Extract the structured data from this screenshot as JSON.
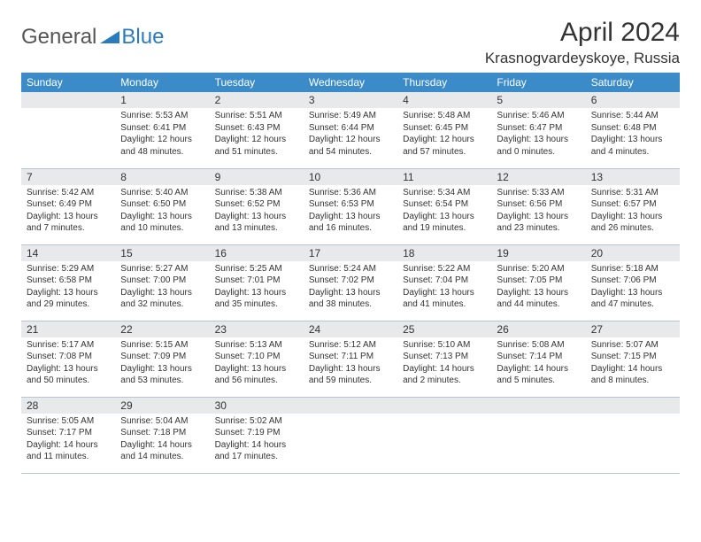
{
  "logo": {
    "general": "General",
    "blue": "Blue"
  },
  "title": "April 2024",
  "location": "Krasnogvardeyskoye, Russia",
  "colors": {
    "header_bg": "#3b8bc9",
    "daynum_bg": "#e7e9eb",
    "border": "#b8c5d0",
    "logo_blue": "#2b7bbf"
  },
  "weekdays": [
    "Sunday",
    "Monday",
    "Tuesday",
    "Wednesday",
    "Thursday",
    "Friday",
    "Saturday"
  ],
  "weeks": [
    [
      null,
      {
        "n": "1",
        "sr": "Sunrise: 5:53 AM",
        "ss": "Sunset: 6:41 PM",
        "d1": "Daylight: 12 hours",
        "d2": "and 48 minutes."
      },
      {
        "n": "2",
        "sr": "Sunrise: 5:51 AM",
        "ss": "Sunset: 6:43 PM",
        "d1": "Daylight: 12 hours",
        "d2": "and 51 minutes."
      },
      {
        "n": "3",
        "sr": "Sunrise: 5:49 AM",
        "ss": "Sunset: 6:44 PM",
        "d1": "Daylight: 12 hours",
        "d2": "and 54 minutes."
      },
      {
        "n": "4",
        "sr": "Sunrise: 5:48 AM",
        "ss": "Sunset: 6:45 PM",
        "d1": "Daylight: 12 hours",
        "d2": "and 57 minutes."
      },
      {
        "n": "5",
        "sr": "Sunrise: 5:46 AM",
        "ss": "Sunset: 6:47 PM",
        "d1": "Daylight: 13 hours",
        "d2": "and 0 minutes."
      },
      {
        "n": "6",
        "sr": "Sunrise: 5:44 AM",
        "ss": "Sunset: 6:48 PM",
        "d1": "Daylight: 13 hours",
        "d2": "and 4 minutes."
      }
    ],
    [
      {
        "n": "7",
        "sr": "Sunrise: 5:42 AM",
        "ss": "Sunset: 6:49 PM",
        "d1": "Daylight: 13 hours",
        "d2": "and 7 minutes."
      },
      {
        "n": "8",
        "sr": "Sunrise: 5:40 AM",
        "ss": "Sunset: 6:50 PM",
        "d1": "Daylight: 13 hours",
        "d2": "and 10 minutes."
      },
      {
        "n": "9",
        "sr": "Sunrise: 5:38 AM",
        "ss": "Sunset: 6:52 PM",
        "d1": "Daylight: 13 hours",
        "d2": "and 13 minutes."
      },
      {
        "n": "10",
        "sr": "Sunrise: 5:36 AM",
        "ss": "Sunset: 6:53 PM",
        "d1": "Daylight: 13 hours",
        "d2": "and 16 minutes."
      },
      {
        "n": "11",
        "sr": "Sunrise: 5:34 AM",
        "ss": "Sunset: 6:54 PM",
        "d1": "Daylight: 13 hours",
        "d2": "and 19 minutes."
      },
      {
        "n": "12",
        "sr": "Sunrise: 5:33 AM",
        "ss": "Sunset: 6:56 PM",
        "d1": "Daylight: 13 hours",
        "d2": "and 23 minutes."
      },
      {
        "n": "13",
        "sr": "Sunrise: 5:31 AM",
        "ss": "Sunset: 6:57 PM",
        "d1": "Daylight: 13 hours",
        "d2": "and 26 minutes."
      }
    ],
    [
      {
        "n": "14",
        "sr": "Sunrise: 5:29 AM",
        "ss": "Sunset: 6:58 PM",
        "d1": "Daylight: 13 hours",
        "d2": "and 29 minutes."
      },
      {
        "n": "15",
        "sr": "Sunrise: 5:27 AM",
        "ss": "Sunset: 7:00 PM",
        "d1": "Daylight: 13 hours",
        "d2": "and 32 minutes."
      },
      {
        "n": "16",
        "sr": "Sunrise: 5:25 AM",
        "ss": "Sunset: 7:01 PM",
        "d1": "Daylight: 13 hours",
        "d2": "and 35 minutes."
      },
      {
        "n": "17",
        "sr": "Sunrise: 5:24 AM",
        "ss": "Sunset: 7:02 PM",
        "d1": "Daylight: 13 hours",
        "d2": "and 38 minutes."
      },
      {
        "n": "18",
        "sr": "Sunrise: 5:22 AM",
        "ss": "Sunset: 7:04 PM",
        "d1": "Daylight: 13 hours",
        "d2": "and 41 minutes."
      },
      {
        "n": "19",
        "sr": "Sunrise: 5:20 AM",
        "ss": "Sunset: 7:05 PM",
        "d1": "Daylight: 13 hours",
        "d2": "and 44 minutes."
      },
      {
        "n": "20",
        "sr": "Sunrise: 5:18 AM",
        "ss": "Sunset: 7:06 PM",
        "d1": "Daylight: 13 hours",
        "d2": "and 47 minutes."
      }
    ],
    [
      {
        "n": "21",
        "sr": "Sunrise: 5:17 AM",
        "ss": "Sunset: 7:08 PM",
        "d1": "Daylight: 13 hours",
        "d2": "and 50 minutes."
      },
      {
        "n": "22",
        "sr": "Sunrise: 5:15 AM",
        "ss": "Sunset: 7:09 PM",
        "d1": "Daylight: 13 hours",
        "d2": "and 53 minutes."
      },
      {
        "n": "23",
        "sr": "Sunrise: 5:13 AM",
        "ss": "Sunset: 7:10 PM",
        "d1": "Daylight: 13 hours",
        "d2": "and 56 minutes."
      },
      {
        "n": "24",
        "sr": "Sunrise: 5:12 AM",
        "ss": "Sunset: 7:11 PM",
        "d1": "Daylight: 13 hours",
        "d2": "and 59 minutes."
      },
      {
        "n": "25",
        "sr": "Sunrise: 5:10 AM",
        "ss": "Sunset: 7:13 PM",
        "d1": "Daylight: 14 hours",
        "d2": "and 2 minutes."
      },
      {
        "n": "26",
        "sr": "Sunrise: 5:08 AM",
        "ss": "Sunset: 7:14 PM",
        "d1": "Daylight: 14 hours",
        "d2": "and 5 minutes."
      },
      {
        "n": "27",
        "sr": "Sunrise: 5:07 AM",
        "ss": "Sunset: 7:15 PM",
        "d1": "Daylight: 14 hours",
        "d2": "and 8 minutes."
      }
    ],
    [
      {
        "n": "28",
        "sr": "Sunrise: 5:05 AM",
        "ss": "Sunset: 7:17 PM",
        "d1": "Daylight: 14 hours",
        "d2": "and 11 minutes."
      },
      {
        "n": "29",
        "sr": "Sunrise: 5:04 AM",
        "ss": "Sunset: 7:18 PM",
        "d1": "Daylight: 14 hours",
        "d2": "and 14 minutes."
      },
      {
        "n": "30",
        "sr": "Sunrise: 5:02 AM",
        "ss": "Sunset: 7:19 PM",
        "d1": "Daylight: 14 hours",
        "d2": "and 17 minutes."
      },
      null,
      null,
      null,
      null
    ]
  ]
}
